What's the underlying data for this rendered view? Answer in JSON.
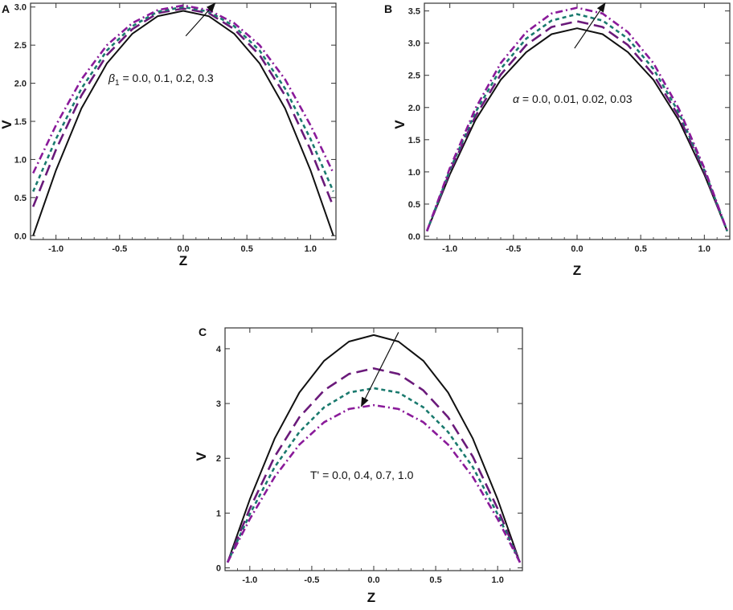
{
  "chart_data": [
    {
      "type": "line",
      "panel_label": "A",
      "xlabel": "Z",
      "ylabel": "V",
      "xlim": [
        -1.2,
        1.2
      ],
      "ylim": [
        -0.05,
        3.05
      ],
      "xticks": [
        -1.0,
        -0.5,
        0.0,
        0.5,
        1.0
      ],
      "xtick_labels": [
        "-1.0",
        "-0.5",
        "0.0",
        "0.5",
        "1.0"
      ],
      "yticks": [
        0.0,
        0.5,
        1.0,
        1.5,
        2.0,
        2.5,
        3.0
      ],
      "ytick_labels": [
        "0.0",
        "0.5",
        "1.0",
        "1.5",
        "2.0",
        "2.5",
        "3.0"
      ],
      "grid": false,
      "annotation": {
        "symbol": "β",
        "subscript": "1",
        "rest": " = 0.0,  0.1,  0.2,  0.3"
      },
      "arrow": {
        "from": [
          0.02,
          2.62
        ],
        "to": [
          0.25,
          3.05
        ]
      },
      "series": [
        {
          "color": "#111111",
          "dash": "solid",
          "x": [
            -1.18,
            -1.0,
            -0.8,
            -0.6,
            -0.4,
            -0.2,
            0.0,
            0.2,
            0.4,
            0.6,
            0.8,
            1.0,
            1.18
          ],
          "y": [
            0.0,
            0.86,
            1.67,
            2.26,
            2.65,
            2.88,
            2.95,
            2.88,
            2.65,
            2.26,
            1.67,
            0.86,
            0.0
          ]
        },
        {
          "color": "#6a1a7a",
          "dash": "long-dash",
          "x": [
            -1.18,
            -1.0,
            -0.8,
            -0.6,
            -0.4,
            -0.2,
            0.0,
            0.2,
            0.4,
            0.6,
            0.8,
            1.0,
            1.18
          ],
          "y": [
            0.38,
            1.13,
            1.84,
            2.37,
            2.71,
            2.92,
            2.98,
            2.92,
            2.71,
            2.37,
            1.84,
            1.13,
            0.38
          ]
        },
        {
          "color": "#1a7a6e",
          "dash": "short-dash",
          "x": [
            -1.18,
            -1.0,
            -0.8,
            -0.6,
            -0.4,
            -0.2,
            0.0,
            0.2,
            0.4,
            0.6,
            0.8,
            1.0,
            1.18
          ],
          "y": [
            0.58,
            1.27,
            1.93,
            2.43,
            2.75,
            2.94,
            3.0,
            2.94,
            2.75,
            2.43,
            1.93,
            1.27,
            0.58
          ]
        },
        {
          "color": "#8a1a9a",
          "dash": "dash-dot",
          "x": [
            -1.18,
            -1.0,
            -0.8,
            -0.6,
            -0.4,
            -0.2,
            0.0,
            0.2,
            0.4,
            0.6,
            0.8,
            1.0,
            1.18
          ],
          "y": [
            0.82,
            1.45,
            2.05,
            2.5,
            2.79,
            2.96,
            3.02,
            2.96,
            2.79,
            2.5,
            2.05,
            1.45,
            0.82
          ]
        }
      ]
    },
    {
      "type": "line",
      "panel_label": "B",
      "xlabel": "Z",
      "ylabel": "V",
      "xlim": [
        -1.2,
        1.2
      ],
      "ylim": [
        -0.05,
        3.62
      ],
      "xticks": [
        -1.0,
        -0.5,
        0.0,
        0.5,
        1.0
      ],
      "xtick_labels": [
        "-1.0",
        "-0.5",
        "0.0",
        "0.5",
        "1.0"
      ],
      "yticks": [
        0.0,
        0.5,
        1.0,
        1.5,
        2.0,
        2.5,
        3.0,
        3.5
      ],
      "ytick_labels": [
        "0.0",
        "0.5",
        "1.0",
        "1.5",
        "2.0",
        "2.5",
        "3.0",
        "3.5"
      ],
      "grid": false,
      "annotation": {
        "symbol": "α",
        "subscript": "",
        "rest": " = 0.0, 0.01, 0.02, 0.03"
      },
      "arrow": {
        "from": [
          -0.02,
          2.92
        ],
        "to": [
          0.22,
          3.62
        ]
      },
      "series": [
        {
          "color": "#111111",
          "dash": "solid",
          "x": [
            -1.18,
            -1.0,
            -0.8,
            -0.6,
            -0.4,
            -0.2,
            0.0,
            0.2,
            0.4,
            0.6,
            0.8,
            1.0,
            1.18
          ],
          "y": [
            0.08,
            0.96,
            1.8,
            2.43,
            2.86,
            3.14,
            3.23,
            3.14,
            2.86,
            2.43,
            1.8,
            0.96,
            0.08
          ]
        },
        {
          "color": "#6a1a7a",
          "dash": "long-dash",
          "x": [
            -1.18,
            -1.0,
            -0.8,
            -0.6,
            -0.4,
            -0.2,
            0.0,
            0.2,
            0.4,
            0.6,
            0.8,
            1.0,
            1.18
          ],
          "y": [
            0.08,
            1.0,
            1.86,
            2.51,
            2.97,
            3.25,
            3.34,
            3.25,
            2.97,
            2.51,
            1.86,
            1.0,
            0.08
          ]
        },
        {
          "color": "#1a7a6e",
          "dash": "short-dash",
          "x": [
            -1.18,
            -1.0,
            -0.8,
            -0.6,
            -0.4,
            -0.2,
            0.0,
            0.2,
            0.4,
            0.6,
            0.8,
            1.0,
            1.18
          ],
          "y": [
            0.08,
            1.03,
            1.92,
            2.6,
            3.07,
            3.35,
            3.45,
            3.35,
            3.07,
            2.6,
            1.92,
            1.03,
            0.08
          ]
        },
        {
          "color": "#8a1a9a",
          "dash": "dash-dot",
          "x": [
            -1.18,
            -1.0,
            -0.8,
            -0.6,
            -0.4,
            -0.2,
            0.0,
            0.2,
            0.4,
            0.6,
            0.8,
            1.0,
            1.18
          ],
          "y": [
            0.08,
            1.06,
            1.98,
            2.69,
            3.17,
            3.46,
            3.55,
            3.46,
            3.17,
            2.69,
            1.98,
            1.06,
            0.08
          ]
        }
      ]
    },
    {
      "type": "line",
      "panel_label": "C",
      "xlabel": "Z",
      "ylabel": "V",
      "xlim": [
        -1.2,
        1.2
      ],
      "ylim": [
        -0.05,
        4.38
      ],
      "xticks": [
        -1.0,
        -0.5,
        0.0,
        0.5,
        1.0
      ],
      "xtick_labels": [
        "-1.0",
        "-0.5",
        "0.0",
        "0.5",
        "1.0"
      ],
      "yticks": [
        0,
        1,
        2,
        3,
        4
      ],
      "ytick_labels": [
        "0",
        "1",
        "2",
        "3",
        "4"
      ],
      "grid": false,
      "annotation": {
        "symbol": "",
        "subscript": "",
        "rest": "T' = 0.0, 0.4, 0.7, 1.0"
      },
      "arrow": {
        "from": [
          0.2,
          4.3
        ],
        "to": [
          -0.1,
          2.95
        ]
      },
      "series": [
        {
          "color": "#111111",
          "dash": "solid",
          "x": [
            -1.18,
            -1.0,
            -0.8,
            -0.6,
            -0.4,
            -0.2,
            0.0,
            0.2,
            0.4,
            0.6,
            0.8,
            1.0,
            1.18
          ],
          "y": [
            0.1,
            1.25,
            2.36,
            3.2,
            3.78,
            4.13,
            4.25,
            4.13,
            3.78,
            3.2,
            2.36,
            1.25,
            0.1
          ]
        },
        {
          "color": "#6a1a7a",
          "dash": "long-dash",
          "x": [
            -1.18,
            -1.0,
            -0.8,
            -0.6,
            -0.4,
            -0.2,
            0.0,
            0.2,
            0.4,
            0.6,
            0.8,
            1.0,
            1.18
          ],
          "y": [
            0.1,
            1.08,
            2.03,
            2.75,
            3.24,
            3.54,
            3.64,
            3.54,
            3.24,
            2.75,
            2.03,
            1.08,
            0.1
          ]
        },
        {
          "color": "#1a7a6e",
          "dash": "short-dash",
          "x": [
            -1.18,
            -1.0,
            -0.8,
            -0.6,
            -0.4,
            -0.2,
            0.0,
            0.2,
            0.4,
            0.6,
            0.8,
            1.0,
            1.18
          ],
          "y": [
            0.1,
            0.98,
            1.84,
            2.48,
            2.93,
            3.2,
            3.28,
            3.2,
            2.93,
            2.48,
            1.84,
            0.98,
            0.1
          ]
        },
        {
          "color": "#8a1a9a",
          "dash": "dash-dot",
          "x": [
            -1.18,
            -1.0,
            -0.8,
            -0.6,
            -0.4,
            -0.2,
            0.0,
            0.2,
            0.4,
            0.6,
            0.8,
            1.0,
            1.18
          ],
          "y": [
            0.1,
            0.89,
            1.66,
            2.25,
            2.66,
            2.9,
            2.97,
            2.9,
            2.66,
            2.25,
            1.66,
            0.89,
            0.1
          ]
        }
      ]
    }
  ]
}
